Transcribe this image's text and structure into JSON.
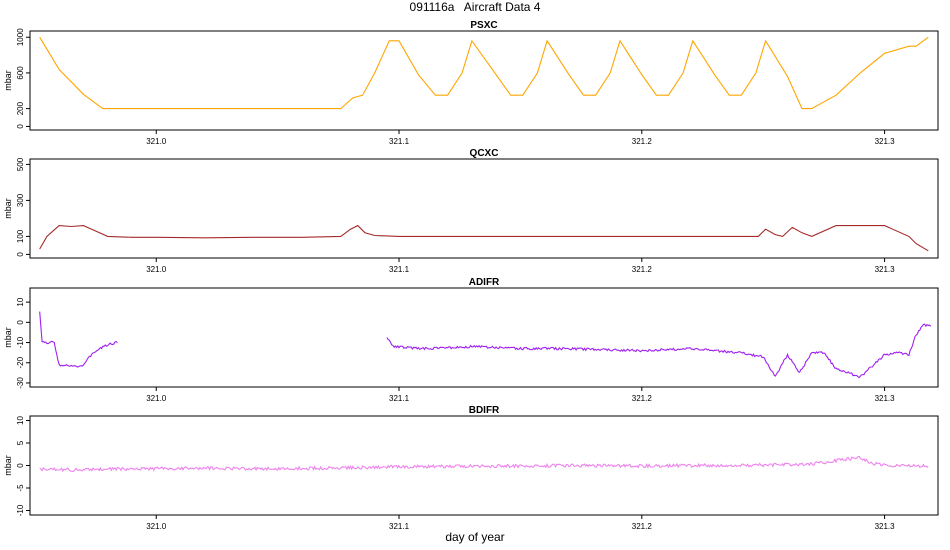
{
  "title": "091116a   Aircraft Data 4",
  "xlabel": "day of year",
  "chart_data": [
    {
      "type": "line",
      "title": "PSXC",
      "ylabel": "mbar",
      "color": "#FFA500",
      "xlim": [
        320.948,
        321.322
      ],
      "ylim": [
        -40,
        1070
      ],
      "xticks": [
        "321.0",
        "321.1",
        "321.2",
        "321.3"
      ],
      "yticks": [
        "0",
        "200",
        "600",
        "1000"
      ],
      "series": [
        {
          "x": [
            320.952,
            320.96,
            320.97,
            320.978,
            321.0,
            321.04,
            321.076,
            321.081,
            321.085,
            321.09,
            321.096,
            321.1,
            321.108,
            321.115,
            321.12,
            321.126,
            321.13,
            321.14,
            321.146,
            321.151,
            321.157,
            321.161,
            321.17,
            321.176,
            321.181,
            321.187,
            321.191,
            321.2,
            321.206,
            321.211,
            321.217,
            321.221,
            321.23,
            321.236,
            321.241,
            321.247,
            321.251,
            321.26,
            321.266,
            321.27,
            321.28,
            321.29,
            321.3,
            321.31,
            321.313,
            321.318
          ],
          "y": [
            1000,
            640,
            360,
            200,
            200,
            200,
            200,
            320,
            350,
            600,
            960,
            960,
            580,
            350,
            350,
            600,
            960,
            580,
            350,
            350,
            600,
            960,
            580,
            350,
            350,
            600,
            960,
            580,
            350,
            350,
            600,
            960,
            580,
            350,
            350,
            600,
            960,
            560,
            200,
            200,
            350,
            600,
            820,
            900,
            900,
            1000
          ]
        }
      ]
    },
    {
      "type": "line",
      "title": "QCXC",
      "ylabel": "mbar",
      "color": "#A52A2A",
      "xlim": [
        320.948,
        321.322
      ],
      "ylim": [
        -20,
        530
      ],
      "xticks": [
        "321.0",
        "321.1",
        "321.2",
        "321.3"
      ],
      "yticks": [
        "0",
        "100",
        "300",
        "500"
      ],
      "series": [
        {
          "x": [
            320.952,
            320.955,
            320.96,
            320.965,
            320.97,
            320.975,
            320.98,
            320.99,
            321.0,
            321.02,
            321.04,
            321.06,
            321.076,
            321.08,
            321.083,
            321.086,
            321.09,
            321.1,
            321.15,
            321.2,
            321.248,
            321.251,
            321.255,
            321.258,
            321.262,
            321.266,
            321.27,
            321.28,
            321.3,
            321.31,
            321.313,
            321.318
          ],
          "y": [
            30,
            100,
            160,
            155,
            160,
            130,
            100,
            95,
            95,
            92,
            95,
            95,
            100,
            140,
            160,
            120,
            105,
            100,
            100,
            100,
            100,
            140,
            110,
            100,
            150,
            120,
            100,
            160,
            160,
            100,
            60,
            20
          ]
        }
      ]
    },
    {
      "type": "line",
      "title": "ADIFR",
      "ylabel": "mbar",
      "color": "#A020F0",
      "xlim": [
        320.948,
        321.322
      ],
      "ylim": [
        -32,
        17
      ],
      "xticks": [
        "321.0",
        "321.1",
        "321.2",
        "321.3"
      ],
      "yticks": [
        "-30",
        "-20",
        "-10",
        "0",
        "10"
      ],
      "series": [
        {
          "x": [
            320.952,
            320.953,
            320.954,
            320.958,
            320.96,
            320.966,
            320.97,
            320.974,
            320.98,
            320.984
          ],
          "y": [
            5,
            -9,
            -10,
            -10,
            -21,
            -22,
            -21,
            -15,
            -11,
            -10
          ]
        },
        {
          "x": [
            321.095,
            321.098,
            321.11,
            321.13,
            321.15,
            321.17,
            321.2,
            321.22,
            321.24,
            321.25,
            321.255,
            321.26,
            321.265,
            321.27,
            321.275,
            321.28,
            321.29,
            321.3,
            321.305,
            321.31,
            321.313,
            321.316,
            321.319
          ],
          "y": [
            -8,
            -12,
            -13,
            -12,
            -13,
            -13,
            -14,
            -13,
            -15,
            -17,
            -27,
            -16,
            -25,
            -15,
            -15,
            -23,
            -27,
            -16,
            -15,
            -16,
            -6,
            -1,
            -2
          ]
        }
      ]
    },
    {
      "type": "line",
      "title": "BDIFR",
      "ylabel": "mbar",
      "color": "#EE82EE",
      "xlim": [
        320.948,
        321.322
      ],
      "ylim": [
        -11,
        11
      ],
      "xticks": [
        "321.0",
        "321.1",
        "321.2",
        "321.3"
      ],
      "yticks": [
        "-10",
        "-5",
        "0",
        "5",
        "10"
      ],
      "series": [
        {
          "x": [
            320.952,
            320.97,
            320.98,
            321.0,
            321.02,
            321.05,
            321.08,
            321.095,
            321.12,
            321.15,
            321.17,
            321.2,
            321.22,
            321.25,
            321.27,
            321.29,
            321.295,
            321.3,
            321.31,
            321.318
          ],
          "y": [
            -0.8,
            -1,
            -0.8,
            -0.7,
            -0.6,
            -0.7,
            -0.5,
            -0.3,
            -0.2,
            -0.1,
            0,
            -0.1,
            0,
            0.1,
            0.3,
            1.8,
            0.5,
            0,
            0,
            -0.2
          ]
        }
      ]
    }
  ]
}
